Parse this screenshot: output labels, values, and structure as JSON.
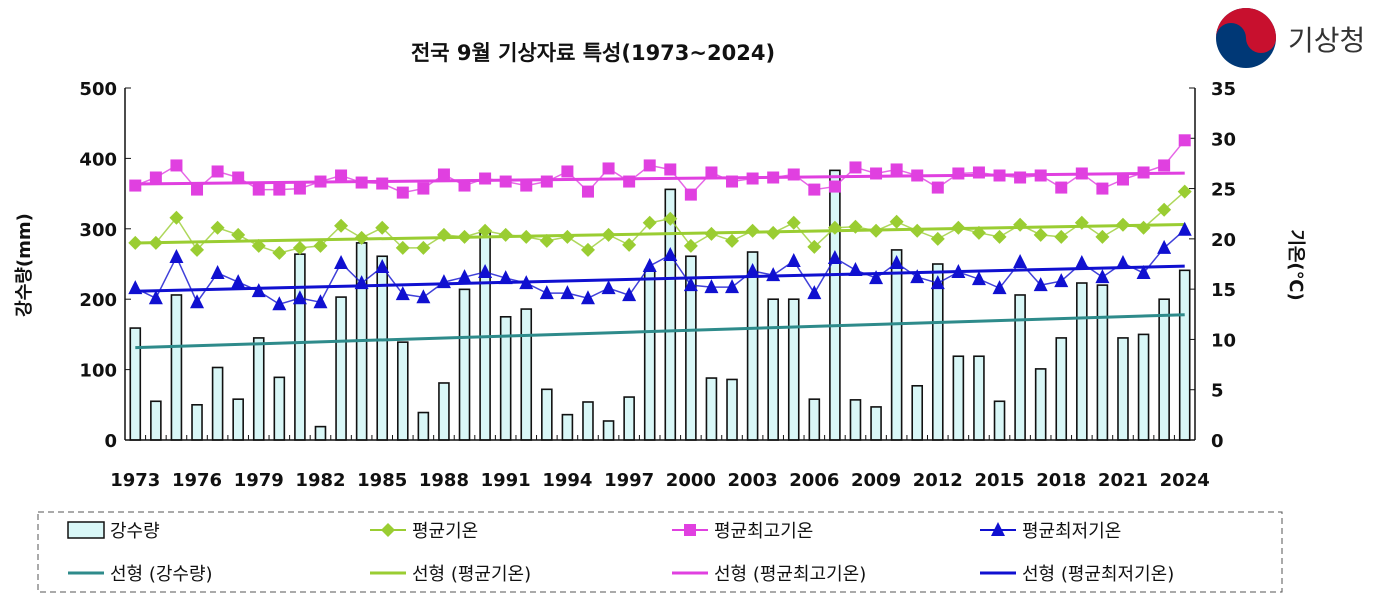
{
  "logo": {
    "text": "기상청",
    "colors": {
      "red": "#c8102e",
      "blue": "#003876"
    }
  },
  "chart_data": {
    "type": "bar+line",
    "title": "전국  9월 기상자료 특성(1973~2024)",
    "ylabel": "강수량(mm)",
    "y2label": "기온(℃)",
    "ylim": [
      0,
      500
    ],
    "y2lim": [
      0,
      35
    ],
    "yticks": [
      "0",
      "100",
      "200",
      "300",
      "400",
      "500"
    ],
    "y2ticks": [
      "0",
      "5",
      "10",
      "15",
      "20",
      "25",
      "30",
      "35"
    ],
    "xtick_labels": [
      "1973",
      "1976",
      "1979",
      "1982",
      "1985",
      "1988",
      "1991",
      "1994",
      "1997",
      "2000",
      "2003",
      "2006",
      "2009",
      "2012",
      "2015",
      "2018",
      "2021",
      "2024"
    ],
    "years": [
      1973,
      1974,
      1975,
      1976,
      1977,
      1978,
      1979,
      1980,
      1981,
      1982,
      1983,
      1984,
      1985,
      1986,
      1987,
      1988,
      1989,
      1990,
      1991,
      1992,
      1993,
      1994,
      1995,
      1996,
      1997,
      1998,
      1999,
      2000,
      2001,
      2002,
      2003,
      2004,
      2005,
      2006,
      2007,
      2008,
      2009,
      2010,
      2011,
      2012,
      2013,
      2014,
      2015,
      2016,
      2017,
      2018,
      2019,
      2020,
      2021,
      2022,
      2023,
      2024
    ],
    "series": [
      {
        "name": "강수량",
        "axis": "left",
        "kind": "bar",
        "color": "#d9f7f7",
        "values": [
          159,
          55,
          206,
          50,
          103,
          58,
          145,
          89,
          264,
          19,
          203,
          280,
          261,
          139,
          39,
          81,
          214,
          294,
          175,
          186,
          72,
          36,
          54,
          27,
          61,
          242,
          356,
          261,
          88,
          86,
          267,
          200,
          200,
          58,
          383,
          57,
          47,
          270,
          77,
          250,
          119,
          119,
          55,
          206,
          101,
          145,
          223,
          220,
          145,
          150,
          200,
          241
        ]
      },
      {
        "name": "평균기온",
        "axis": "right",
        "kind": "line",
        "marker": "diamond",
        "color": "#9acd32",
        "values": [
          19.6,
          19.6,
          22.1,
          18.9,
          21.1,
          20.4,
          19.3,
          18.6,
          19.1,
          19.3,
          21.3,
          20.1,
          21.1,
          19.1,
          19.1,
          20.4,
          20.2,
          20.8,
          20.4,
          20.2,
          19.8,
          20.2,
          18.9,
          20.4,
          19.4,
          21.6,
          22.0,
          19.3,
          20.5,
          19.8,
          20.8,
          20.6,
          21.6,
          19.2,
          21.1,
          21.2,
          20.8,
          21.7,
          20.8,
          20.0,
          21.1,
          20.6,
          20.2,
          21.4,
          20.4,
          20.2,
          21.6,
          20.2,
          21.4,
          21.1,
          22.9,
          24.7
        ]
      },
      {
        "name": "평균최고기온",
        "axis": "right",
        "kind": "line",
        "marker": "square",
        "color": "#e040e0",
        "values": [
          25.3,
          26.1,
          27.3,
          24.9,
          26.7,
          26.1,
          24.9,
          24.9,
          25.0,
          25.7,
          26.3,
          25.6,
          25.5,
          24.6,
          25.0,
          26.4,
          25.3,
          26.0,
          25.7,
          25.3,
          25.7,
          26.7,
          24.7,
          27.0,
          25.7,
          27.3,
          26.9,
          24.4,
          26.6,
          25.7,
          26.0,
          26.1,
          26.4,
          24.9,
          25.2,
          27.1,
          26.5,
          26.9,
          26.3,
          25.1,
          26.5,
          26.6,
          26.3,
          26.1,
          26.3,
          25.1,
          26.5,
          25.0,
          25.9,
          26.6,
          27.3,
          29.8
        ]
      },
      {
        "name": "평균최저기온",
        "axis": "right",
        "kind": "line",
        "marker": "triangle",
        "color": "#1010d0",
        "values": [
          15.1,
          14.1,
          18.2,
          13.7,
          16.6,
          15.7,
          14.8,
          13.5,
          14.1,
          13.7,
          17.6,
          15.6,
          17.2,
          14.5,
          14.2,
          15.7,
          16.2,
          16.7,
          16.1,
          15.6,
          14.6,
          14.6,
          14.1,
          15.1,
          14.4,
          17.3,
          18.4,
          15.4,
          15.2,
          15.2,
          16.8,
          16.4,
          17.8,
          14.6,
          18.1,
          16.9,
          16.1,
          17.6,
          16.2,
          15.6,
          16.7,
          16.0,
          15.1,
          17.7,
          15.4,
          15.8,
          17.6,
          16.2,
          17.6,
          16.6,
          19.1,
          20.9
        ]
      }
    ],
    "trendlines": [
      {
        "name": "선형 (강수량)",
        "of": "강수량",
        "color": "#2e8b8b"
      },
      {
        "name": "선형 (평균기온)",
        "of": "평균기온",
        "color": "#9acd32"
      },
      {
        "name": "선형 (평균최고기온)",
        "of": "평균최고기온",
        "color": "#e040e0"
      },
      {
        "name": "선형 (평균최저기온)",
        "of": "평균최저기온",
        "color": "#1010d0"
      }
    ],
    "legend": {
      "placement": "bottom",
      "border": "dashed"
    },
    "grid": false
  }
}
